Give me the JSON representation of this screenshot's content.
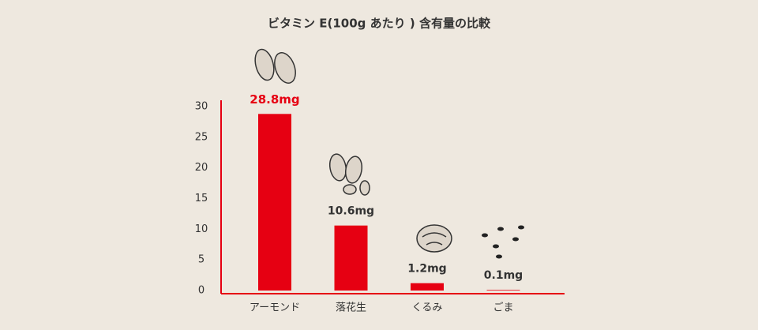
{
  "chart_data": {
    "type": "bar",
    "title": "ビタミン E(100g あたり ) 含有量の比較",
    "categories": [
      "アーモンド",
      "落花生",
      "くるみ",
      "ごま"
    ],
    "values": [
      28.8,
      10.6,
      1.2,
      0.1
    ],
    "value_labels": [
      "28.8mg",
      "10.6mg",
      "1.2mg",
      "0.1mg"
    ],
    "value_label_colors": [
      "#e60012",
      "#333333",
      "#333333",
      "#333333"
    ],
    "color": "#e60012",
    "ylim": [
      0,
      30
    ],
    "yticks": [
      0,
      5,
      10,
      15,
      20,
      25,
      30
    ],
    "grid": false
  }
}
